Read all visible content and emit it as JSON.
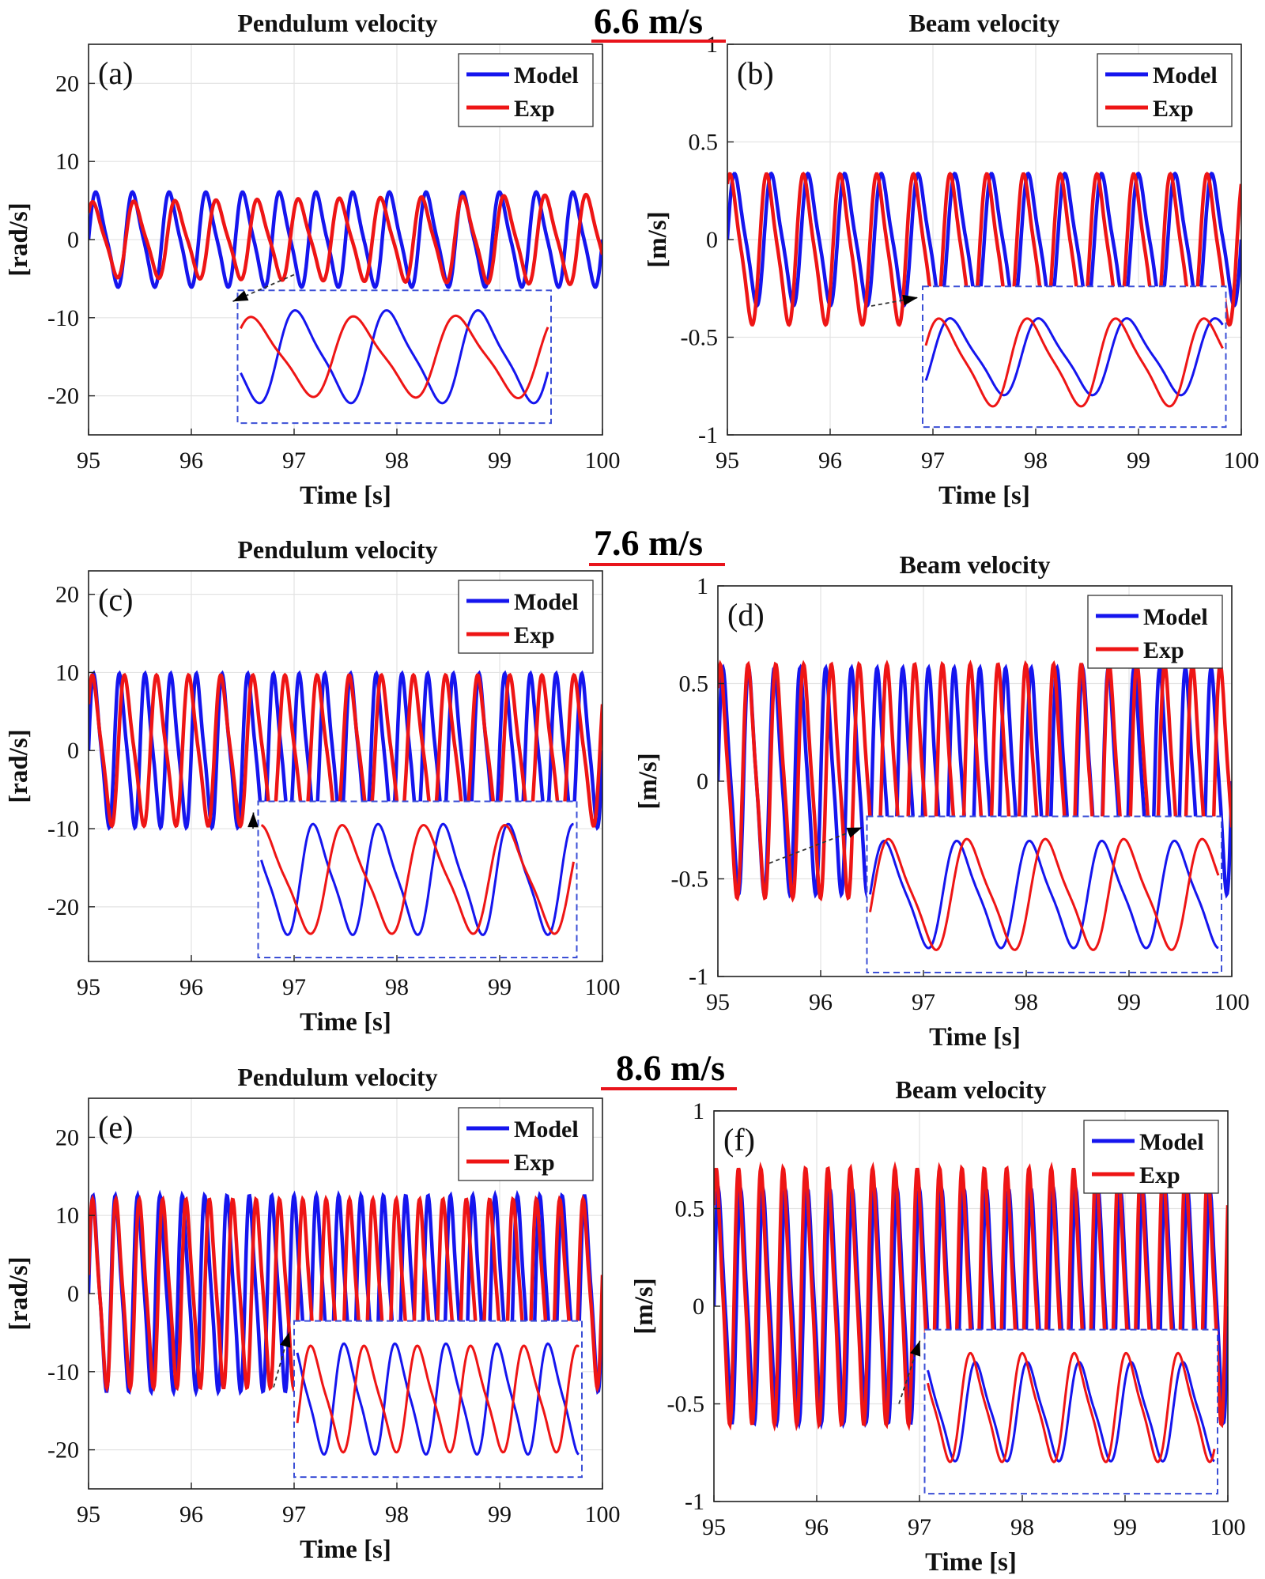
{
  "speed_labels": [
    "6.6 m/s",
    "7.6 m/s",
    "8.6 m/s"
  ],
  "colors": {
    "model": "#1515ee",
    "exp": "#ee1515",
    "inset_border": "#3b4fd6",
    "speed_underline": "#e8141b"
  },
  "chart_data": [
    {
      "panel": "(a)",
      "type": "line",
      "title": "Pendulum velocity",
      "xlabel": "Time [s]",
      "ylabel": "[rad/s]",
      "xlim": [
        95,
        100
      ],
      "ylim": [
        -25,
        25
      ],
      "xticks": [
        "95",
        "96",
        "97",
        "98",
        "99",
        "100"
      ],
      "yticks": [
        "20",
        "10",
        "0",
        "-10",
        "-20"
      ],
      "yticks_values": [
        20,
        10,
        0,
        -10,
        -20
      ],
      "grid": true,
      "legend": "top-right",
      "series": [
        {
          "name": "Model",
          "amplitude": 6.3,
          "frequency_hz": 2.8,
          "phase": 0.0,
          "offset": 0.0
        },
        {
          "name": "Exp",
          "amplitude": 5.0,
          "frequency_hz": 2.5,
          "phase": 0.6,
          "offset": 0.0,
          "amplitude_growth": 0.2
        }
      ],
      "inset": {
        "from_x": 97.0,
        "from_y": -4.5,
        "window_s": 1.2
      }
    },
    {
      "panel": "(b)",
      "type": "line",
      "title": "Beam velocity",
      "xlabel": "Time [s]",
      "ylabel": "[m/s]",
      "xlim": [
        95,
        100
      ],
      "ylim": [
        -1,
        1
      ],
      "xticks": [
        "95",
        "96",
        "97",
        "98",
        "99",
        "100"
      ],
      "yticks": [
        "1",
        "0.5",
        "0",
        "-0.5",
        "-1"
      ],
      "yticks_values": [
        1,
        0.5,
        0,
        -0.5,
        -1
      ],
      "grid": true,
      "legend": "top-right",
      "series": [
        {
          "name": "Model",
          "amplitude": 0.35,
          "frequency_hz": 2.8,
          "phase": 0.0,
          "offset": 0.0
        },
        {
          "name": "Exp",
          "amplitude": 0.4,
          "frequency_hz": 2.8,
          "phase": 0.8,
          "offset": -0.05
        }
      ],
      "inset": {
        "from_x": 96.4,
        "from_y": -0.34,
        "window_s": 1.2
      }
    },
    {
      "panel": "(c)",
      "type": "line",
      "title": "Pendulum velocity",
      "xlabel": "Time [s]",
      "ylabel": "[rad/s]",
      "xlim": [
        95,
        100
      ],
      "ylim": [
        -27,
        23
      ],
      "xticks": [
        "95",
        "96",
        "97",
        "98",
        "99",
        "100"
      ],
      "yticks": [
        "20",
        "10",
        "0",
        "-10",
        "-20"
      ],
      "yticks_values": [
        20,
        10,
        0,
        -10,
        -20
      ],
      "grid": true,
      "legend": "top-right",
      "series": [
        {
          "name": "Model",
          "amplitude": 10.2,
          "frequency_hz": 4.0,
          "phase": 0.0,
          "offset": 0.0
        },
        {
          "name": "Exp",
          "amplitude": 10.0,
          "frequency_hz": 3.2,
          "phase": 0.5,
          "offset": 0.0
        }
      ],
      "inset": {
        "from_x": 96.6,
        "from_y": -10,
        "window_s": 1.2
      }
    },
    {
      "panel": "(d)",
      "type": "line",
      "title": "Beam velocity",
      "xlabel": "Time [s]",
      "ylabel": "[m/s]",
      "xlim": [
        95,
        100
      ],
      "ylim": [
        -1,
        1
      ],
      "xticks": [
        "95",
        "96",
        "97",
        "98",
        "99",
        "100"
      ],
      "yticks": [
        "1",
        "0.5",
        "0",
        "-0.5",
        "-1"
      ],
      "yticks_values": [
        1,
        0.5,
        0,
        -0.5,
        -1
      ],
      "grid": true,
      "legend": "top-right",
      "series": [
        {
          "name": "Model",
          "amplitude": 0.6,
          "frequency_hz": 4.0,
          "phase": 0.0,
          "offset": 0.0
        },
        {
          "name": "Exp",
          "amplitude": 0.62,
          "frequency_hz": 3.7,
          "phase": 0.7,
          "offset": 0.0
        }
      ],
      "inset": {
        "from_x": 95.5,
        "from_y": -0.42,
        "window_s": 1.2
      }
    },
    {
      "panel": "(e)",
      "type": "line",
      "title": "Pendulum velocity",
      "xlabel": "Time [s]",
      "ylabel": "[rad/s]",
      "xlim": [
        95,
        100
      ],
      "ylim": [
        -25,
        25
      ],
      "xticks": [
        "95",
        "96",
        "97",
        "98",
        "99",
        "100"
      ],
      "yticks": [
        "20",
        "10",
        "0",
        "-10",
        "-20"
      ],
      "yticks_values": [
        20,
        10,
        0,
        -10,
        -20
      ],
      "grid": true,
      "legend": "top-right",
      "series": [
        {
          "name": "Model",
          "amplitude": 13.0,
          "frequency_hz": 4.6,
          "phase": 0.0,
          "offset": 0.0
        },
        {
          "name": "Exp",
          "amplitude": 12.5,
          "frequency_hz": 4.4,
          "phase": 0.15,
          "offset": 0.0
        }
      ],
      "inset": {
        "from_x": 96.8,
        "from_y": -12,
        "window_s": 1.2
      }
    },
    {
      "panel": "(f)",
      "type": "line",
      "title": "Beam velocity",
      "xlabel": "Time [s]",
      "ylabel": "[m/s]",
      "xlim": [
        95,
        100
      ],
      "ylim": [
        -1,
        1
      ],
      "xticks": [
        "95",
        "96",
        "97",
        "98",
        "99",
        "100"
      ],
      "yticks": [
        "1",
        "0.5",
        "0",
        "-0.5",
        "-1"
      ],
      "yticks_values": [
        1,
        0.5,
        0,
        -0.5,
        -1
      ],
      "grid": true,
      "legend": "top-right",
      "series": [
        {
          "name": "Model",
          "amplitude": 0.62,
          "frequency_hz": 4.6,
          "phase": 0.0,
          "offset": 0.0
        },
        {
          "name": "Exp",
          "amplitude": 0.68,
          "frequency_hz": 4.6,
          "phase": 0.6,
          "offset": 0.05
        }
      ],
      "inset": {
        "from_x": 96.8,
        "from_y": -0.5,
        "window_s": 1.2
      }
    }
  ]
}
